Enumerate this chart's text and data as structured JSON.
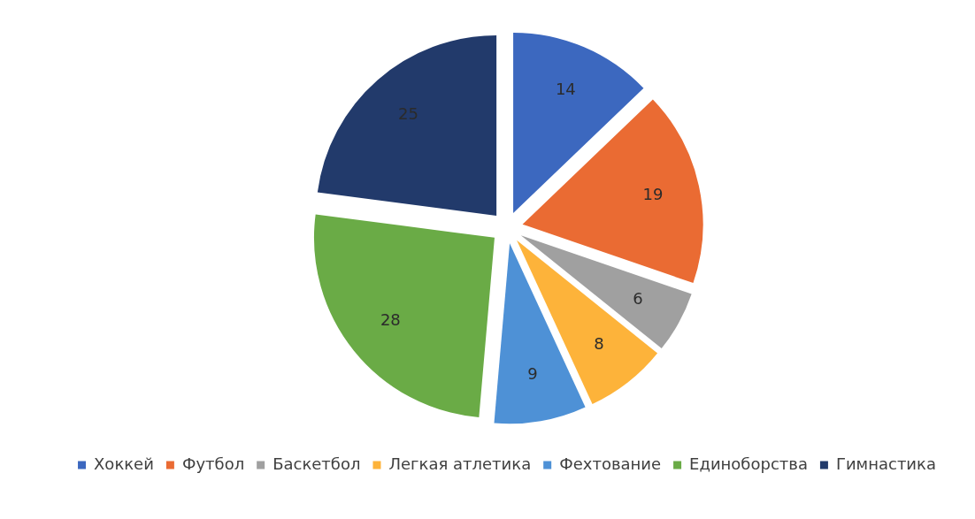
{
  "chart_data": {
    "type": "pie",
    "categories": [
      "Хоккей",
      "Футбол",
      "Баскетбол",
      "Легкая атлетика",
      "Фехтование",
      "Единоборства",
      "Гимнастика"
    ],
    "values": [
      14,
      19,
      6,
      8,
      9,
      28,
      25
    ],
    "colors": [
      "#3c68bf",
      "#ea6b33",
      "#a0a0a0",
      "#fdb33a",
      "#4e91d6",
      "#6aab46",
      "#223a6b"
    ],
    "data_labels": true,
    "legend": "bottom"
  }
}
